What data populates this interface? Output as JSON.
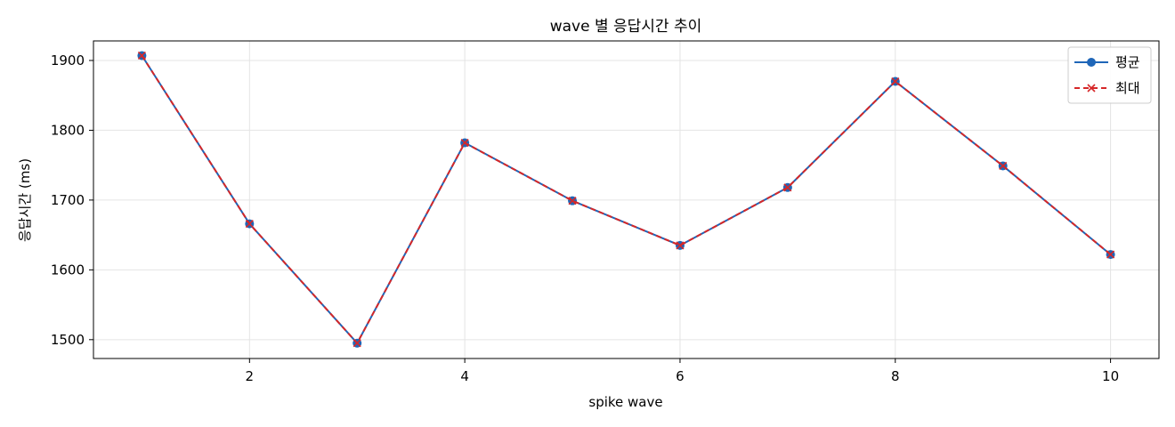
{
  "chart_data": {
    "type": "line",
    "title": "wave 별 응답시간 추이",
    "xlabel": "spike wave",
    "ylabel": "응답시간 (ms)",
    "x": [
      1,
      2,
      3,
      4,
      5,
      6,
      7,
      8,
      9,
      10
    ],
    "xlim": [
      0.55,
      10.45
    ],
    "ylim": [
      1473,
      1928
    ],
    "xticks": [
      2,
      4,
      6,
      8,
      10
    ],
    "yticks": [
      1500,
      1600,
      1700,
      1800,
      1900
    ],
    "grid": true,
    "legend_position": "top-right",
    "series": [
      {
        "name": "평균",
        "values": [
          1907,
          1666,
          1495,
          1782,
          1699,
          1635,
          1718,
          1870,
          1749,
          1622
        ],
        "color": "#1f66b8",
        "marker": "circle",
        "line_style": "solid"
      },
      {
        "name": "최대",
        "values": [
          1907,
          1666,
          1495,
          1782,
          1699,
          1635,
          1718,
          1870,
          1749,
          1622
        ],
        "color": "#d62728",
        "marker": "x",
        "line_style": "dashed"
      }
    ]
  }
}
